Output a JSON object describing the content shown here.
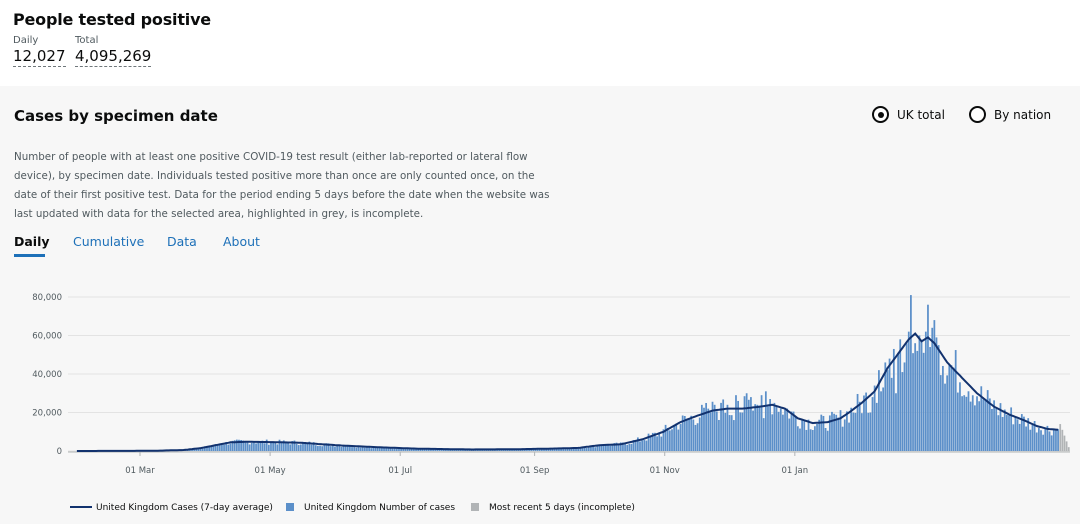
{
  "headline": {
    "title": "People tested positive",
    "daily_label": "Daily",
    "daily_value": "12,027",
    "total_label": "Total",
    "total_value": "4,095,269"
  },
  "card": {
    "title": "Cases by specimen date",
    "radio_uk": "UK total",
    "radio_nation": "By nation",
    "selected": "UK total",
    "description": "Number of people with at least one positive COVID-19 test result (either lab-reported or lateral flow device), by specimen date. Individuals tested positive more than once are only counted once, on the date of their first positive test. Data for the period ending 5 days before the date when the website was last updated with data for the selected area, highlighted in grey, is incomplete.",
    "tabs": [
      {
        "label": "Daily",
        "active": true
      },
      {
        "label": "Cumulative",
        "active": false
      },
      {
        "label": "Data",
        "active": false
      },
      {
        "label": "About",
        "active": false
      }
    ]
  },
  "colors": {
    "bar": "#5b8fc9",
    "line": "#12326e",
    "incomplete": "#b1b4b6",
    "grid": "#e3e3e3",
    "link": "#1d70b8"
  },
  "chart_data": {
    "type": "bar",
    "x_start": "2020-01-30",
    "y_ticks": [
      "80,000",
      "60,000",
      "40,000",
      "20,000",
      "0"
    ],
    "ylim": [
      0,
      80000
    ],
    "x_ticks": [
      "01 Mar",
      "01 May",
      "01 Jul",
      "01 Sep",
      "01 Nov",
      "01 Jan"
    ],
    "grid": true,
    "legend_position": "bottom",
    "series": [
      {
        "name": "United Kingdom Cases (7-day average)",
        "type": "line"
      },
      {
        "name": "United Kingdom Number of cases",
        "type": "bar"
      },
      {
        "name": "Most recent 5 days (incomplete)",
        "type": "bar"
      }
    ],
    "avg_knots": [
      [
        0,
        0
      ],
      [
        35,
        100
      ],
      [
        50,
        500
      ],
      [
        58,
        1500
      ],
      [
        65,
        3000
      ],
      [
        72,
        4500
      ],
      [
        80,
        4800
      ],
      [
        92,
        4600
      ],
      [
        105,
        4300
      ],
      [
        115,
        3500
      ],
      [
        125,
        2800
      ],
      [
        140,
        2000
      ],
      [
        160,
        1200
      ],
      [
        185,
        800
      ],
      [
        205,
        900
      ],
      [
        225,
        1300
      ],
      [
        235,
        1600
      ],
      [
        245,
        3000
      ],
      [
        255,
        3500
      ],
      [
        265,
        6000
      ],
      [
        275,
        10000
      ],
      [
        283,
        15000
      ],
      [
        290,
        18000
      ],
      [
        298,
        21000
      ],
      [
        305,
        22000
      ],
      [
        312,
        22000
      ],
      [
        320,
        23000
      ],
      [
        326,
        24000
      ],
      [
        332,
        22000
      ],
      [
        338,
        17000
      ],
      [
        345,
        14500
      ],
      [
        352,
        15000
      ],
      [
        358,
        17000
      ],
      [
        362,
        20000
      ],
      [
        368,
        25000
      ],
      [
        374,
        31000
      ],
      [
        380,
        43000
      ],
      [
        386,
        52000
      ],
      [
        390,
        58000
      ],
      [
        393,
        61000
      ],
      [
        396,
        57000
      ],
      [
        399,
        59000
      ],
      [
        402,
        56000
      ],
      [
        408,
        46000
      ],
      [
        415,
        38000
      ],
      [
        422,
        30000
      ],
      [
        430,
        23000
      ],
      [
        437,
        19000
      ],
      [
        444,
        16000
      ],
      [
        450,
        13000
      ],
      [
        455,
        11500
      ],
      [
        460,
        11000
      ]
    ],
    "bar_overrides": [
      [
        391,
        81000
      ],
      [
        393,
        56000
      ],
      [
        394,
        52000
      ],
      [
        395,
        60000
      ],
      [
        396,
        57000
      ],
      [
        397,
        51000
      ],
      [
        398,
        62000
      ],
      [
        399,
        76000
      ],
      [
        400,
        54000
      ],
      [
        401,
        64000
      ],
      [
        402,
        68000
      ],
      [
        403,
        59000
      ],
      [
        404,
        55000
      ],
      [
        384,
        30000
      ],
      [
        385,
        51000
      ],
      [
        386,
        58000
      ],
      [
        387,
        41000
      ],
      [
        388,
        46000
      ],
      [
        389,
        56000
      ],
      [
        390,
        62000
      ],
      [
        379,
        46000
      ],
      [
        380,
        42000
      ],
      [
        381,
        48000
      ],
      [
        382,
        38000
      ],
      [
        383,
        53000
      ],
      [
        372,
        20000
      ],
      [
        373,
        28000
      ],
      [
        374,
        34000
      ],
      [
        375,
        25000
      ],
      [
        376,
        37000
      ],
      [
        377,
        31000
      ],
      [
        378,
        33000
      ],
      [
        376,
        42000
      ],
      [
        323,
        31000
      ],
      [
        321,
        29000
      ],
      [
        314,
        30000
      ],
      [
        296,
        22000
      ],
      [
        299,
        24000
      ],
      [
        302,
        25000
      ],
      [
        305,
        24000
      ],
      [
        309,
        29000
      ],
      [
        310,
        26000
      ],
      [
        316,
        28000
      ],
      [
        317,
        21000
      ],
      [
        319,
        24000
      ],
      [
        325,
        27000
      ],
      [
        327,
        25000
      ],
      [
        330,
        22000
      ]
    ],
    "incomplete_start": 461,
    "incomplete_values": [
      14000,
      11000,
      8000,
      5000,
      2000
    ],
    "total_days": 466
  },
  "legend": {
    "line": "United Kingdom Cases (7-day average)",
    "bars": "United Kingdom Number of cases",
    "incomplete": "Most recent 5 days (incomplete)"
  }
}
